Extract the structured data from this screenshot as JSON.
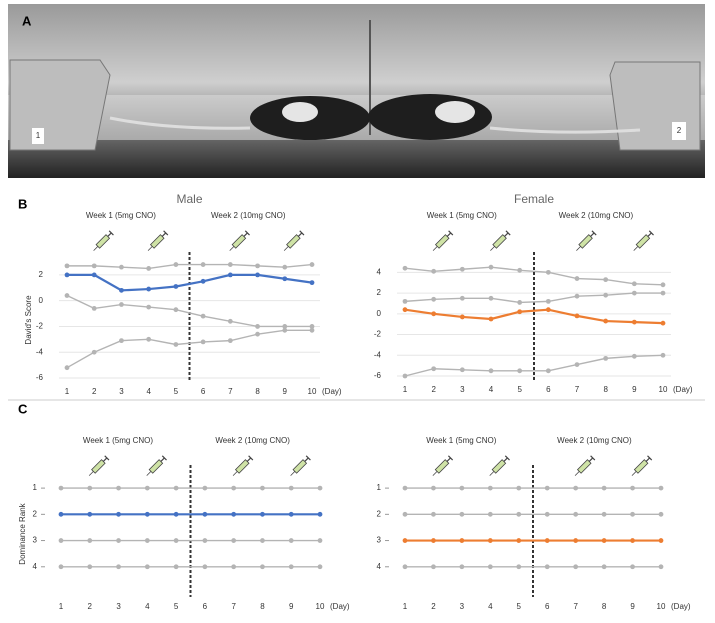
{
  "panels": {
    "a": "A",
    "b": "B",
    "c": "C"
  },
  "photo": {
    "labels": [
      "1",
      "2"
    ]
  },
  "chart_data": [
    {
      "type": "line",
      "title": "Male",
      "y_label": "David's Score",
      "x_label": "(Day)",
      "annotations": [
        "Week 1 (5mg CNO)",
        "Week 2 (10mg CNO)"
      ],
      "x": [
        1,
        2,
        3,
        4,
        5,
        6,
        7,
        8,
        9,
        10
      ],
      "xlim": [
        1,
        10
      ],
      "xticks": [
        1,
        2,
        3,
        4,
        5,
        6,
        7,
        8,
        9,
        10
      ],
      "ylim": [
        -6,
        3
      ],
      "yticks": [
        -6,
        -4,
        -2,
        0,
        2
      ],
      "grid": true,
      "divider_x": 5.5,
      "series": [
        {
          "color": "#b4b4b4",
          "values": [
            2.7,
            2.7,
            2.6,
            2.5,
            2.8,
            2.8,
            2.8,
            2.7,
            2.6,
            2.8
          ]
        },
        {
          "color": "#b4b4b4",
          "values": [
            0.4,
            -0.6,
            -0.3,
            -0.5,
            -0.7,
            -1.2,
            -1.6,
            -2.0,
            -2.0,
            -2.0
          ]
        },
        {
          "color": "#b4b4b4",
          "values": [
            -5.2,
            -4.0,
            -3.1,
            -3.0,
            -3.4,
            -3.2,
            -3.1,
            -2.6,
            -2.3,
            -2.3
          ]
        },
        {
          "color": "#4472c4",
          "values": [
            2.0,
            2.0,
            0.8,
            0.9,
            1.1,
            1.5,
            2.0,
            2.0,
            1.7,
            1.4
          ]
        }
      ]
    },
    {
      "type": "line",
      "title": "Female",
      "x_label": "(Day)",
      "annotations": [
        "Week 1 (5mg CNO)",
        "Week 2 (10mg CNO)"
      ],
      "x": [
        1,
        2,
        3,
        4,
        5,
        6,
        7,
        8,
        9,
        10
      ],
      "xlim": [
        1,
        10
      ],
      "xticks": [
        1,
        2,
        3,
        4,
        5,
        6,
        7,
        8,
        9,
        10
      ],
      "ylim": [
        -6,
        5
      ],
      "yticks": [
        -6,
        -4,
        -2,
        0,
        2,
        4
      ],
      "grid": true,
      "divider_x": 5.5,
      "series": [
        {
          "color": "#b4b4b4",
          "values": [
            4.4,
            4.1,
            4.3,
            4.5,
            4.2,
            4.0,
            3.4,
            3.3,
            2.9,
            2.8
          ]
        },
        {
          "color": "#b4b4b4",
          "values": [
            1.2,
            1.4,
            1.5,
            1.5,
            1.1,
            1.2,
            1.7,
            1.8,
            2.0,
            2.0
          ]
        },
        {
          "color": "#b4b4b4",
          "values": [
            -6.0,
            -5.3,
            -5.4,
            -5.5,
            -5.5,
            -5.5,
            -4.9,
            -4.3,
            -4.1,
            -4.0
          ]
        },
        {
          "color": "#ed7d31",
          "values": [
            0.4,
            0.0,
            -0.3,
            -0.5,
            0.2,
            0.4,
            -0.2,
            -0.7,
            -0.8,
            -0.9
          ]
        }
      ]
    },
    {
      "type": "line",
      "y_label": "Dominance Rank",
      "x_label": "(Day)",
      "annotations": [
        "Week 1 (5mg CNO)",
        "Week 2 (10mg CNO)"
      ],
      "x": [
        1,
        2,
        3,
        4,
        5,
        6,
        7,
        8,
        9,
        10
      ],
      "xlim": [
        1,
        10
      ],
      "xticks": [
        1,
        2,
        3,
        4,
        5,
        6,
        7,
        8,
        9,
        10
      ],
      "ylim": [
        5,
        0.5
      ],
      "yticks": [
        1,
        2,
        3,
        4
      ],
      "grid": false,
      "divider_x": 5.5,
      "series": [
        {
          "color": "#b4b4b4",
          "values": [
            1,
            1,
            1,
            1,
            1,
            1,
            1,
            1,
            1,
            1
          ]
        },
        {
          "color": "#b4b4b4",
          "values": [
            3,
            3,
            3,
            3,
            3,
            3,
            3,
            3,
            3,
            3
          ]
        },
        {
          "color": "#b4b4b4",
          "values": [
            4,
            4,
            4,
            4,
            4,
            4,
            4,
            4,
            4,
            4
          ]
        },
        {
          "color": "#4472c4",
          "values": [
            2,
            2,
            2,
            2,
            2,
            2,
            2,
            2,
            2,
            2
          ]
        }
      ]
    },
    {
      "type": "line",
      "x_label": "(Day)",
      "annotations": [
        "Week 1 (5mg CNO)",
        "Week 2 (10mg CNO)"
      ],
      "x": [
        1,
        2,
        3,
        4,
        5,
        6,
        7,
        8,
        9,
        10
      ],
      "xlim": [
        1,
        10
      ],
      "xticks": [
        1,
        2,
        3,
        4,
        5,
        6,
        7,
        8,
        9,
        10
      ],
      "ylim": [
        5,
        0.5
      ],
      "yticks": [
        1,
        2,
        3,
        4
      ],
      "grid": false,
      "divider_x": 5.5,
      "series": [
        {
          "color": "#b4b4b4",
          "values": [
            1,
            1,
            1,
            1,
            1,
            1,
            1,
            1,
            1,
            1
          ]
        },
        {
          "color": "#b4b4b4",
          "values": [
            2,
            2,
            2,
            2,
            2,
            2,
            2,
            2,
            2,
            2
          ]
        },
        {
          "color": "#b4b4b4",
          "values": [
            4,
            4,
            4,
            4,
            4,
            4,
            4,
            4,
            4,
            4
          ]
        },
        {
          "color": "#ed7d31",
          "values": [
            3,
            3,
            3,
            3,
            3,
            3,
            3,
            3,
            3,
            3
          ]
        }
      ]
    }
  ]
}
